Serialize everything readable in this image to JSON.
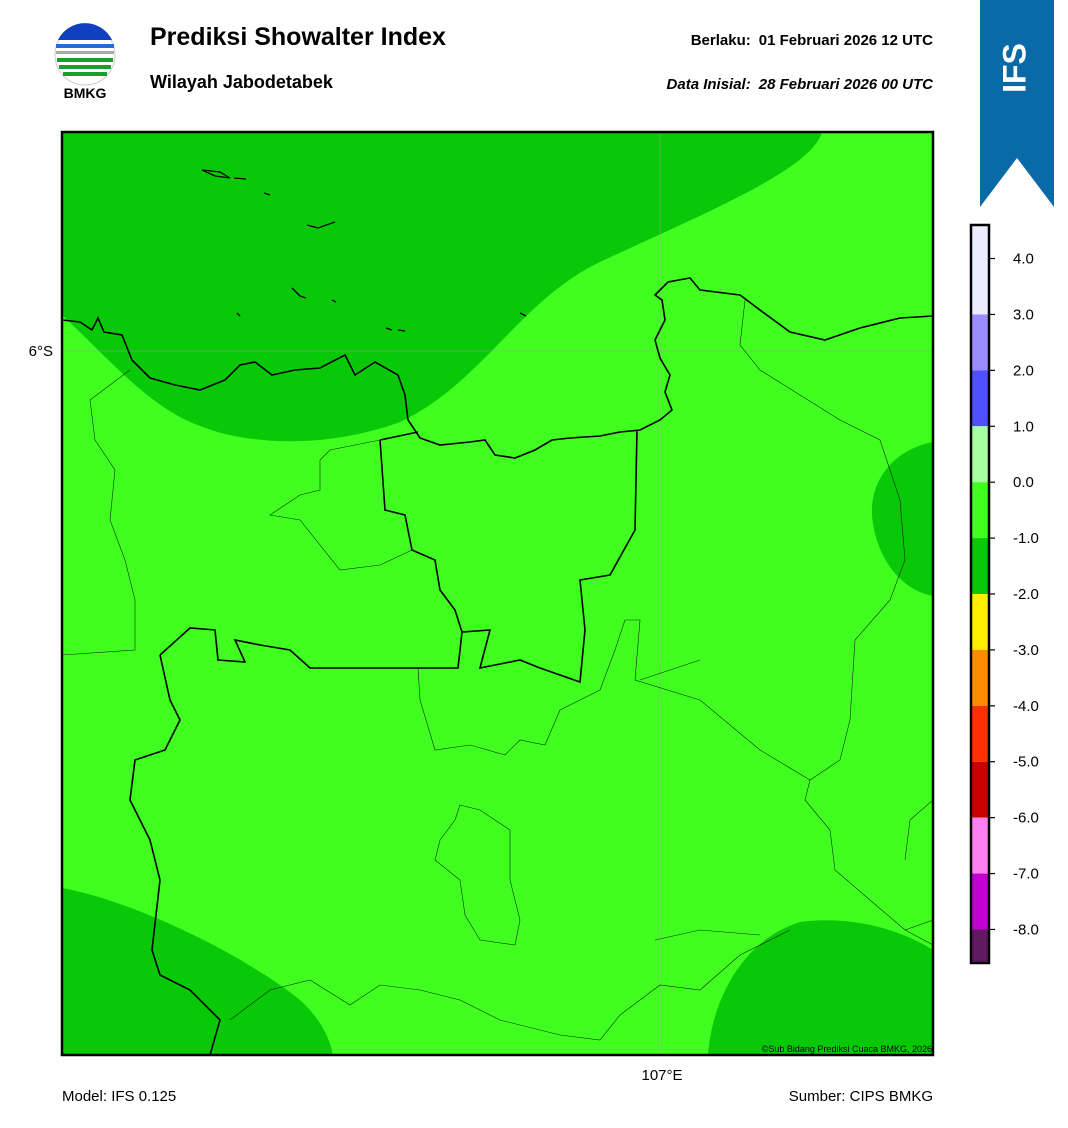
{
  "logo": {
    "label": "BMKG"
  },
  "header": {
    "title": "Prediksi Showalter Index",
    "subtitle": "Wilayah Jabodetabek",
    "valid_label": "Berlaku:",
    "valid": "01 Februari 2026 12 UTC",
    "init_label": "Data Inisial:",
    "init": "28 Februari 2026 00 UTC"
  },
  "badge": "IFS",
  "map": {
    "lat_label": "6°S",
    "lon_label": "107°E",
    "copyright": "©Sub Bidang Prediksi Cuaca BMKG, 2026"
  },
  "colorbar": {
    "lim": [
      -8.6,
      4.6
    ],
    "edges": [
      4.6,
      3,
      2,
      1,
      0,
      -1,
      -2,
      -3,
      -4,
      -5,
      -6,
      -7,
      -8,
      -8.6
    ],
    "colors": [
      "#ececff",
      "#9d8cff",
      "#4f4fff",
      "#a8ffa0",
      "#40ff20",
      "#08c808",
      "#ffee00",
      "#ff8c00",
      "#ff3000",
      "#c80000",
      "#ff80f0",
      "#c000d0",
      "#601860"
    ],
    "ticks": [
      {
        "value": 4,
        "label": "4.0"
      },
      {
        "value": 3,
        "label": "3.0"
      },
      {
        "value": 2,
        "label": "2.0"
      },
      {
        "value": 1,
        "label": "1.0"
      },
      {
        "value": 0,
        "label": "0.0"
      },
      {
        "value": -1,
        "label": "-1.0"
      },
      {
        "value": -2,
        "label": "-2.0"
      },
      {
        "value": -3,
        "label": "-3.0"
      },
      {
        "value": -4,
        "label": "-4.0"
      },
      {
        "value": -5,
        "label": "-5.0"
      },
      {
        "value": -6,
        "label": "-6.0"
      },
      {
        "value": -7,
        "label": "-7.0"
      },
      {
        "value": -8,
        "label": "-8.0"
      }
    ]
  },
  "footer": {
    "model": "Model: IFS 0.125",
    "source": "Sumber: CIPS BMKG"
  }
}
